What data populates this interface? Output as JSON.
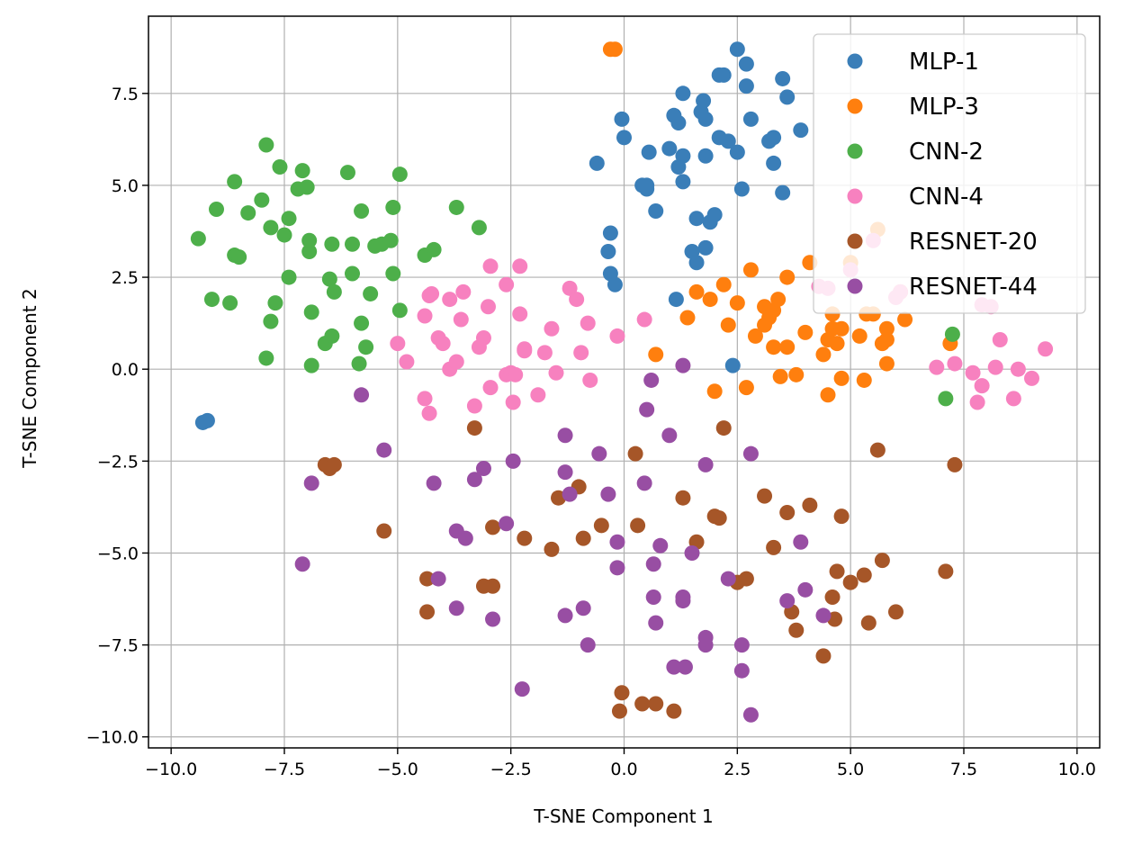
{
  "chart_data": {
    "type": "scatter",
    "title": "",
    "xlabel": "T-SNE Component 1",
    "ylabel": "T-SNE Component 2",
    "xlim": [
      -10.5,
      10.5
    ],
    "ylim": [
      -10.3,
      9.6
    ],
    "xticks": [
      -10.0,
      -7.5,
      -5.0,
      -2.5,
      0.0,
      2.5,
      5.0,
      7.5,
      10.0
    ],
    "xtick_labels": [
      "−10.0",
      "−7.5",
      "−5.0",
      "−2.5",
      "0.0",
      "2.5",
      "5.0",
      "7.5",
      "10.0"
    ],
    "yticks": [
      -10.0,
      -7.5,
      -5.0,
      -2.5,
      0.0,
      2.5,
      5.0,
      7.5
    ],
    "ytick_labels": [
      "−10.0",
      "−7.5",
      "−5.0",
      "−2.5",
      "0.0",
      "2.5",
      "5.0",
      "7.5"
    ],
    "grid": true,
    "legend": "top-right",
    "series": [
      {
        "name": "MLP-1",
        "color": "#3a7eb8",
        "points": [
          [
            -9.2,
            -1.4
          ],
          [
            -9.3,
            -1.45
          ],
          [
            -0.2,
            2.3
          ],
          [
            -0.3,
            2.6
          ],
          [
            -0.35,
            3.2
          ],
          [
            -0.3,
            3.7
          ],
          [
            -0.6,
            5.6
          ],
          [
            0.0,
            6.3
          ],
          [
            -0.05,
            6.8
          ],
          [
            0.4,
            5.0
          ],
          [
            0.5,
            4.9
          ],
          [
            0.5,
            5.0
          ],
          [
            0.7,
            4.3
          ],
          [
            0.55,
            5.9
          ],
          [
            1.0,
            6.0
          ],
          [
            1.1,
            6.9
          ],
          [
            1.2,
            6.7
          ],
          [
            1.2,
            5.5
          ],
          [
            1.3,
            5.1
          ],
          [
            1.3,
            5.8
          ],
          [
            1.3,
            7.5
          ],
          [
            1.5,
            3.2
          ],
          [
            1.6,
            2.9
          ],
          [
            1.6,
            4.1
          ],
          [
            1.7,
            7.0
          ],
          [
            1.75,
            7.3
          ],
          [
            1.8,
            6.8
          ],
          [
            1.8,
            5.8
          ],
          [
            1.8,
            3.3
          ],
          [
            1.9,
            4.0
          ],
          [
            2.0,
            4.2
          ],
          [
            2.1,
            6.3
          ],
          [
            2.1,
            8.0
          ],
          [
            2.2,
            8.0
          ],
          [
            2.3,
            6.2
          ],
          [
            2.5,
            8.7
          ],
          [
            2.5,
            5.9
          ],
          [
            2.6,
            4.9
          ],
          [
            2.7,
            7.7
          ],
          [
            2.7,
            8.3
          ],
          [
            2.8,
            6.8
          ],
          [
            3.2,
            6.2
          ],
          [
            3.3,
            6.3
          ],
          [
            3.3,
            5.6
          ],
          [
            3.5,
            4.8
          ],
          [
            3.5,
            7.9
          ],
          [
            3.6,
            7.4
          ],
          [
            3.9,
            6.5
          ],
          [
            1.15,
            1.9
          ],
          [
            2.4,
            0.1
          ]
        ]
      },
      {
        "name": "MLP-3",
        "color": "#ff7f0e",
        "points": [
          [
            -0.3,
            8.7
          ],
          [
            -0.2,
            8.7
          ],
          [
            0.7,
            0.4
          ],
          [
            1.4,
            1.4
          ],
          [
            1.6,
            2.1
          ],
          [
            1.9,
            1.9
          ],
          [
            2.0,
            -0.6
          ],
          [
            2.2,
            2.3
          ],
          [
            2.3,
            1.2
          ],
          [
            2.5,
            1.8
          ],
          [
            2.7,
            -0.5
          ],
          [
            2.8,
            2.7
          ],
          [
            2.9,
            0.9
          ],
          [
            3.1,
            1.7
          ],
          [
            3.1,
            1.2
          ],
          [
            3.2,
            1.4
          ],
          [
            3.3,
            0.6
          ],
          [
            3.3,
            1.6
          ],
          [
            3.4,
            1.9
          ],
          [
            3.45,
            -0.2
          ],
          [
            3.6,
            2.5
          ],
          [
            3.6,
            0.6
          ],
          [
            3.8,
            -0.15
          ],
          [
            4.0,
            1.0
          ],
          [
            4.1,
            2.9
          ],
          [
            4.4,
            0.4
          ],
          [
            4.5,
            -0.7
          ],
          [
            4.5,
            0.8
          ],
          [
            4.6,
            1.1
          ],
          [
            4.6,
            1.5
          ],
          [
            4.7,
            0.7
          ],
          [
            4.8,
            1.1
          ],
          [
            4.8,
            -0.25
          ],
          [
            5.0,
            2.9
          ],
          [
            5.2,
            0.9
          ],
          [
            5.3,
            -0.3
          ],
          [
            5.35,
            1.5
          ],
          [
            5.5,
            1.5
          ],
          [
            5.6,
            3.8
          ],
          [
            5.7,
            0.7
          ],
          [
            5.8,
            0.8
          ],
          [
            5.8,
            1.1
          ],
          [
            5.8,
            0.15
          ],
          [
            6.1,
            2.1
          ],
          [
            6.2,
            1.35
          ],
          [
            7.2,
            0.7
          ]
        ]
      },
      {
        "name": "CNN-2",
        "color": "#4daf4a",
        "points": [
          [
            -9.4,
            3.55
          ],
          [
            -9.1,
            1.9
          ],
          [
            -9.0,
            4.35
          ],
          [
            -8.7,
            1.8
          ],
          [
            -8.6,
            3.1
          ],
          [
            -8.5,
            3.05
          ],
          [
            -8.6,
            5.1
          ],
          [
            -8.3,
            4.25
          ],
          [
            -8.0,
            4.6
          ],
          [
            -7.9,
            0.3
          ],
          [
            -7.9,
            6.1
          ],
          [
            -7.8,
            3.85
          ],
          [
            -7.8,
            1.3
          ],
          [
            -7.7,
            1.8
          ],
          [
            -7.6,
            5.5
          ],
          [
            -7.5,
            3.65
          ],
          [
            -7.4,
            4.1
          ],
          [
            -7.4,
            2.5
          ],
          [
            -7.2,
            4.9
          ],
          [
            -7.1,
            5.4
          ],
          [
            -7.0,
            4.95
          ],
          [
            -6.95,
            3.2
          ],
          [
            -6.95,
            3.5
          ],
          [
            -6.9,
            0.1
          ],
          [
            -6.9,
            1.55
          ],
          [
            -6.6,
            0.7
          ],
          [
            -6.5,
            2.45
          ],
          [
            -6.45,
            0.9
          ],
          [
            -6.45,
            3.4
          ],
          [
            -6.4,
            2.1
          ],
          [
            -6.1,
            5.35
          ],
          [
            -6.0,
            2.6
          ],
          [
            -6.0,
            3.4
          ],
          [
            -5.85,
            0.15
          ],
          [
            -5.8,
            1.25
          ],
          [
            -5.8,
            4.3
          ],
          [
            -5.7,
            0.6
          ],
          [
            -5.6,
            2.05
          ],
          [
            -5.5,
            3.35
          ],
          [
            -5.35,
            3.4
          ],
          [
            -5.15,
            3.5
          ],
          [
            -5.1,
            4.4
          ],
          [
            -5.1,
            2.6
          ],
          [
            -4.95,
            1.6
          ],
          [
            -4.95,
            5.3
          ],
          [
            -4.4,
            3.1
          ],
          [
            -4.2,
            3.25
          ],
          [
            -3.7,
            4.4
          ],
          [
            -3.2,
            3.85
          ],
          [
            7.1,
            -0.8
          ],
          [
            7.25,
            0.95
          ]
        ]
      },
      {
        "name": "CNN-4",
        "color": "#f781bf",
        "points": [
          [
            -5.0,
            0.7
          ],
          [
            -4.8,
            0.2
          ],
          [
            -4.4,
            1.45
          ],
          [
            -4.3,
            2.0
          ],
          [
            -4.25,
            2.05
          ],
          [
            -4.4,
            -0.8
          ],
          [
            -4.3,
            -1.2
          ],
          [
            -4.1,
            0.85
          ],
          [
            -4.0,
            0.7
          ],
          [
            -3.85,
            1.9
          ],
          [
            -3.85,
            0.0
          ],
          [
            -3.7,
            0.2
          ],
          [
            -3.6,
            1.35
          ],
          [
            -3.55,
            2.1
          ],
          [
            -3.3,
            -1.0
          ],
          [
            -3.2,
            0.6
          ],
          [
            -3.1,
            0.85
          ],
          [
            -3.0,
            1.7
          ],
          [
            -2.95,
            2.8
          ],
          [
            -2.95,
            -0.5
          ],
          [
            -2.6,
            2.3
          ],
          [
            -2.6,
            -0.15
          ],
          [
            -2.5,
            -0.1
          ],
          [
            -2.45,
            -0.9
          ],
          [
            -2.4,
            -0.15
          ],
          [
            -2.3,
            1.5
          ],
          [
            -2.3,
            2.8
          ],
          [
            -2.2,
            0.5
          ],
          [
            -2.2,
            0.55
          ],
          [
            -1.9,
            -0.7
          ],
          [
            -1.75,
            0.45
          ],
          [
            -1.6,
            1.1
          ],
          [
            -1.5,
            -0.1
          ],
          [
            -1.2,
            2.2
          ],
          [
            -1.05,
            1.9
          ],
          [
            -0.95,
            0.45
          ],
          [
            -0.8,
            1.25
          ],
          [
            -0.75,
            -0.3
          ],
          [
            -0.15,
            0.9
          ],
          [
            0.45,
            1.35
          ],
          [
            4.3,
            2.25
          ],
          [
            4.5,
            2.2
          ],
          [
            5.0,
            2.7
          ],
          [
            5.5,
            3.5
          ],
          [
            6.0,
            1.95
          ],
          [
            6.1,
            2.1
          ],
          [
            6.9,
            0.05
          ],
          [
            7.3,
            0.15
          ],
          [
            7.7,
            -0.1
          ],
          [
            7.8,
            -0.9
          ],
          [
            7.9,
            -0.45
          ],
          [
            7.9,
            1.75
          ],
          [
            8.1,
            1.7
          ],
          [
            8.2,
            0.05
          ],
          [
            8.3,
            0.8
          ],
          [
            8.6,
            -0.8
          ],
          [
            8.7,
            0.0
          ],
          [
            9.0,
            -0.25
          ],
          [
            9.3,
            0.55
          ]
        ]
      },
      {
        "name": "RESNET-20",
        "color": "#a65628",
        "points": [
          [
            -6.6,
            -2.6
          ],
          [
            -6.5,
            -2.7
          ],
          [
            -6.4,
            -2.6
          ],
          [
            -5.3,
            -4.4
          ],
          [
            -4.35,
            -5.7
          ],
          [
            -4.35,
            -6.6
          ],
          [
            -3.3,
            -1.6
          ],
          [
            -3.1,
            -5.9
          ],
          [
            -2.9,
            -4.3
          ],
          [
            -2.9,
            -5.9
          ],
          [
            -2.2,
            -4.6
          ],
          [
            -1.6,
            -4.9
          ],
          [
            -1.45,
            -3.5
          ],
          [
            -1.0,
            -3.2
          ],
          [
            -0.9,
            -4.6
          ],
          [
            -0.5,
            -4.25
          ],
          [
            -0.05,
            -8.8
          ],
          [
            -0.1,
            -9.3
          ],
          [
            0.25,
            -2.3
          ],
          [
            0.3,
            -4.25
          ],
          [
            0.4,
            -9.1
          ],
          [
            0.7,
            -9.1
          ],
          [
            1.1,
            -9.3
          ],
          [
            1.3,
            -3.5
          ],
          [
            1.6,
            -4.7
          ],
          [
            2.0,
            -4.0
          ],
          [
            2.1,
            -4.05
          ],
          [
            2.2,
            -1.6
          ],
          [
            2.5,
            -5.8
          ],
          [
            2.7,
            -5.7
          ],
          [
            3.1,
            -3.45
          ],
          [
            3.3,
            -4.85
          ],
          [
            3.6,
            -3.9
          ],
          [
            3.7,
            -6.6
          ],
          [
            3.8,
            -7.1
          ],
          [
            4.1,
            -3.7
          ],
          [
            4.4,
            -7.8
          ],
          [
            4.6,
            -6.2
          ],
          [
            4.65,
            -6.8
          ],
          [
            4.7,
            -5.5
          ],
          [
            4.8,
            -4.0
          ],
          [
            5.0,
            -5.8
          ],
          [
            5.3,
            -5.6
          ],
          [
            5.4,
            -6.9
          ],
          [
            5.6,
            -2.2
          ],
          [
            5.7,
            -5.2
          ],
          [
            6.0,
            -6.6
          ],
          [
            7.1,
            -5.5
          ],
          [
            7.3,
            -2.6
          ]
        ]
      },
      {
        "name": "RESNET-44",
        "color": "#984ea3",
        "points": [
          [
            -7.1,
            -5.3
          ],
          [
            -6.9,
            -3.1
          ],
          [
            -5.8,
            -0.7
          ],
          [
            -5.3,
            -2.2
          ],
          [
            -4.2,
            -3.1
          ],
          [
            -4.1,
            -5.7
          ],
          [
            -3.7,
            -4.4
          ],
          [
            -3.7,
            -6.5
          ],
          [
            -3.5,
            -4.6
          ],
          [
            -3.3,
            -3.0
          ],
          [
            -3.1,
            -2.7
          ],
          [
            -2.9,
            -6.8
          ],
          [
            -2.6,
            -4.2
          ],
          [
            -2.45,
            -2.5
          ],
          [
            -2.25,
            -8.7
          ],
          [
            -1.3,
            -1.8
          ],
          [
            -1.3,
            -2.8
          ],
          [
            -1.3,
            -6.7
          ],
          [
            -1.2,
            -3.4
          ],
          [
            -0.9,
            -6.5
          ],
          [
            -0.8,
            -7.5
          ],
          [
            -0.55,
            -2.3
          ],
          [
            -0.35,
            -3.4
          ],
          [
            -0.15,
            -4.7
          ],
          [
            -0.15,
            -5.4
          ],
          [
            0.45,
            -3.1
          ],
          [
            0.5,
            -1.1
          ],
          [
            0.6,
            -0.3
          ],
          [
            0.65,
            -5.3
          ],
          [
            0.65,
            -6.2
          ],
          [
            0.7,
            -6.9
          ],
          [
            0.8,
            -4.8
          ],
          [
            1.0,
            -1.8
          ],
          [
            1.1,
            -8.1
          ],
          [
            1.3,
            0.1
          ],
          [
            1.3,
            -6.3
          ],
          [
            1.35,
            -8.1
          ],
          [
            1.3,
            -6.2
          ],
          [
            1.5,
            -5.0
          ],
          [
            1.8,
            -2.6
          ],
          [
            1.8,
            -7.3
          ],
          [
            1.8,
            -7.5
          ],
          [
            2.3,
            -5.7
          ],
          [
            2.6,
            -8.2
          ],
          [
            2.6,
            -7.5
          ],
          [
            2.8,
            -2.3
          ],
          [
            2.8,
            -9.4
          ],
          [
            3.6,
            -6.3
          ],
          [
            3.9,
            -4.7
          ],
          [
            4.0,
            -6.0
          ],
          [
            4.4,
            -6.7
          ]
        ]
      }
    ]
  }
}
